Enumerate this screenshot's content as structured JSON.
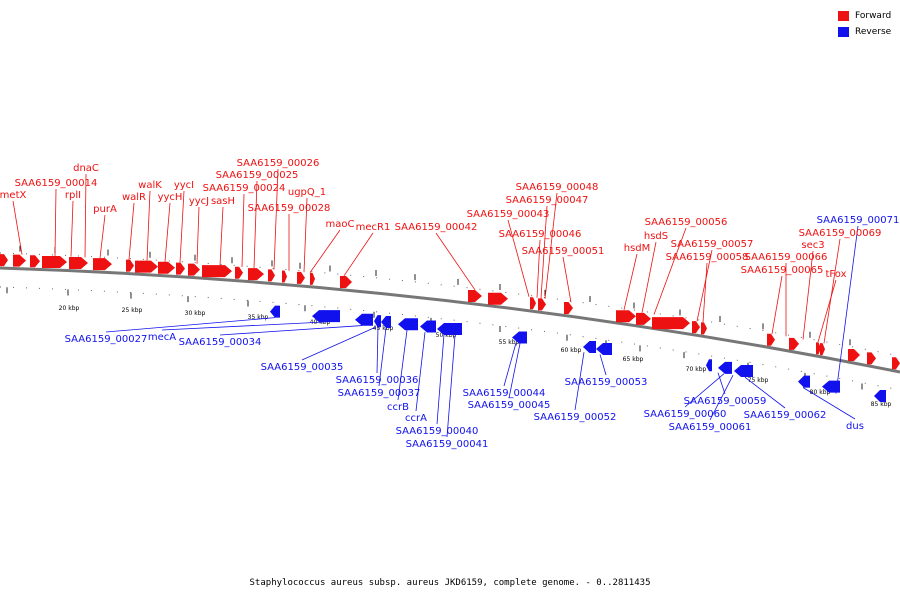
{
  "legend": {
    "forward_label": "Forward",
    "reverse_label": "Reverse",
    "forward_color": "#ee1111",
    "reverse_color": "#1111ee"
  },
  "caption": "Staphylococcus aureus subsp. aureus JKD6159, complete genome. - 0..2811435",
  "ticks": [
    "20 kbp",
    "25 kbp",
    "30 kbp",
    "35 kbp",
    "40 kbp",
    "45 kbp",
    "50 kbp",
    "55 kbp",
    "60 kbp",
    "65 kbp",
    "70 kbp",
    "75 kbp",
    "80 kbp",
    "85 kbp"
  ],
  "forward_genes": [
    "metX",
    "SAA6159_00014",
    "rplI",
    "dnaC",
    "purA",
    "walR",
    "walK",
    "yycH",
    "yycI",
    "yycJ",
    "sasH",
    "SAA6159_00024",
    "SAA6159_00025",
    "SAA6159_00026",
    "SAA6159_00028",
    "ugpQ_1",
    "maoC",
    "mecR1",
    "SAA6159_00042",
    "SAA6159_00043",
    "SAA6159_00046",
    "SAA6159_00047",
    "SAA6159_00048",
    "SAA6159_00051",
    "hsdM",
    "hsdS",
    "SAA6159_00056",
    "SAA6159_00057",
    "SAA6159_00058",
    "SAA6159_00065",
    "SAA6159_00066",
    "sec3",
    "tFox",
    "SAA6159_00069"
  ],
  "reverse_genes": [
    "SAA6159_00027",
    "mecA",
    "SAA6159_00034",
    "SAA6159_00035",
    "SAA6159_00036",
    "SAA6159_00037",
    "ccrB",
    "ccrA",
    "SAA6159_00040",
    "SAA6159_00041",
    "SAA6159_00044",
    "SAA6159_00045",
    "SAA6159_00052",
    "SAA6159_00053",
    "SAA6159_00059",
    "SAA6159_00060",
    "SAA6159_00061",
    "SAA6159_00062",
    "dus",
    "SAA6159_00071"
  ]
}
